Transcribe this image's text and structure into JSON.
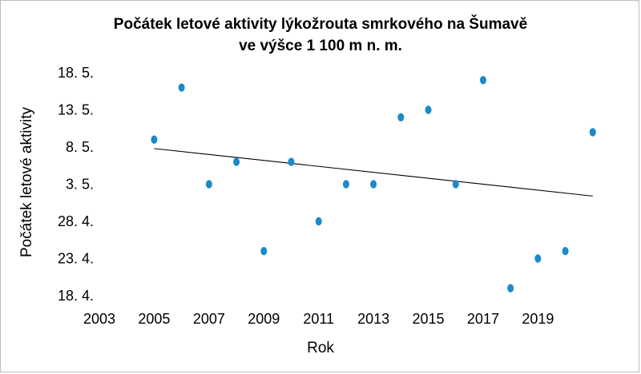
{
  "chart_data": {
    "type": "scatter",
    "title": "Počátek letové aktivity lýkožrouta smrkového na Šumavě",
    "subtitle": "ve výšce 1 100 m n. m.",
    "xlabel": "Rok",
    "ylabel": "Počátek letové aktivity",
    "x_ticks": [
      "2003",
      "2005",
      "2007",
      "2009",
      "2011",
      "2013",
      "2015",
      "2017",
      "2019"
    ],
    "y_ticks": [
      "18. 5.",
      "13. 5.",
      "8. 5.",
      "3. 5.",
      "28. 4.",
      "23. 4.",
      "18. 4."
    ],
    "xlim": [
      2003,
      2022
    ],
    "ylim": [
      -30,
      0
    ],
    "x": [
      2005,
      2006,
      2007,
      2008,
      2009,
      2010,
      2011,
      2012,
      2013,
      2014,
      2015,
      2016,
      2017,
      2018,
      2019,
      2020,
      2021
    ],
    "y": [
      -9,
      -2,
      -15,
      -12,
      -24,
      -12,
      -20,
      -15,
      -15,
      -6,
      -5,
      -15,
      -1,
      -29,
      -25,
      -24,
      -8
    ],
    "trendline": {
      "type": "linear",
      "from": [
        2005,
        -10.2
      ],
      "to": [
        2021,
        -16.6
      ]
    },
    "grid": false,
    "legend": "none",
    "marker_color": "#1a8ac8",
    "trend_color": "#000000"
  }
}
